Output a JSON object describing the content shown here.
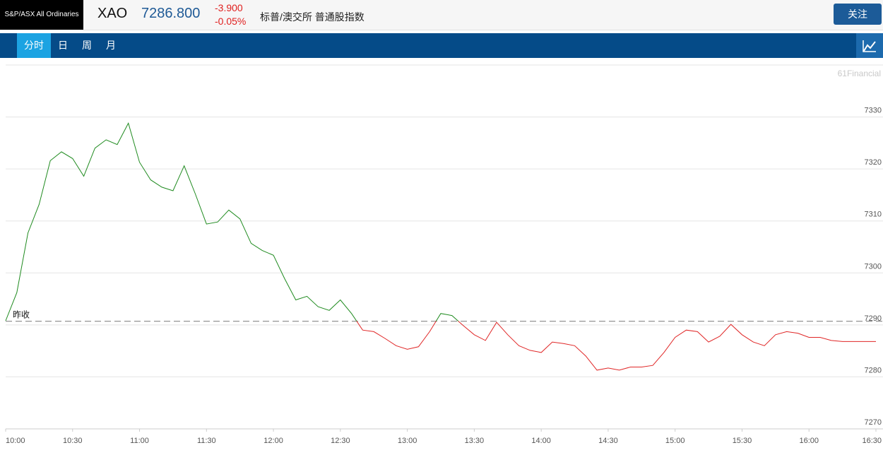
{
  "header": {
    "index_name": "S&P/ASX All Ordinaries",
    "symbol": "XAO",
    "price": "7286.800",
    "change": "-3.900",
    "change_percent": "-0.05%",
    "exchange": "标普/澳交所 普通股指数",
    "follow_button": "关注"
  },
  "tabs": [
    "分时",
    "日",
    "周",
    "月"
  ],
  "watermark": "61Financial",
  "chart_data": {
    "type": "line",
    "x": [
      "10:00",
      "10:05",
      "10:10",
      "10:15",
      "10:20",
      "10:25",
      "10:30",
      "10:35",
      "10:40",
      "10:45",
      "10:50",
      "10:55",
      "11:00",
      "11:05",
      "11:10",
      "11:15",
      "11:20",
      "11:25",
      "11:30",
      "11:35",
      "11:40",
      "11:45",
      "11:50",
      "11:55",
      "12:00",
      "12:05",
      "12:10",
      "12:15",
      "12:20",
      "12:25",
      "12:30",
      "12:35",
      "12:40",
      "12:45",
      "12:50",
      "12:55",
      "13:00",
      "13:05",
      "13:10",
      "13:15",
      "13:20",
      "13:25",
      "13:30",
      "13:35",
      "13:40",
      "13:45",
      "13:50",
      "13:55",
      "14:00",
      "14:05",
      "14:10",
      "14:15",
      "14:20",
      "14:25",
      "14:30",
      "14:35",
      "14:40",
      "14:45",
      "14:50",
      "14:55",
      "15:00",
      "15:05",
      "15:10",
      "15:15",
      "15:20",
      "15:25",
      "15:30",
      "15:35",
      "15:40",
      "15:45",
      "15:50",
      "15:55",
      "16:00",
      "16:05",
      "16:10",
      "16:15",
      "16:20",
      "16:25",
      "16:30"
    ],
    "values": [
      7290.8,
      7296.2,
      7307.7,
      7313.2,
      7321.6,
      7323.3,
      7322.0,
      7318.6,
      7324.0,
      7325.6,
      7324.7,
      7328.8,
      7321.3,
      7317.9,
      7316.5,
      7315.8,
      7320.6,
      7315.2,
      7309.4,
      7309.8,
      7312.1,
      7310.4,
      7305.7,
      7304.3,
      7303.4,
      7298.9,
      7294.8,
      7295.5,
      7293.5,
      7292.8,
      7294.8,
      7292.2,
      7289.0,
      7288.7,
      7287.4,
      7286.0,
      7285.3,
      7285.8,
      7288.7,
      7292.2,
      7291.8,
      7289.9,
      7288.1,
      7287.0,
      7290.5,
      7288.1,
      7286.0,
      7285.1,
      7284.7,
      7286.7,
      7286.4,
      7286.0,
      7284.0,
      7281.3,
      7281.7,
      7281.3,
      7281.9,
      7281.9,
      7282.2,
      7284.7,
      7287.6,
      7289.0,
      7288.7,
      7286.7,
      7287.8,
      7290.1,
      7288.1,
      7286.7,
      7286.0,
      7288.1,
      7288.7,
      7288.4,
      7287.6,
      7287.6,
      7287.0,
      7286.8,
      7286.8,
      7286.8,
      7286.8
    ],
    "colors": {
      "up": "#1e8a1e",
      "down": "#e02626"
    },
    "reference_line": {
      "value": 7290.7,
      "label": "昨收"
    },
    "xlim": [
      "10:00",
      "16:30"
    ],
    "xticks": [
      "10:00",
      "10:30",
      "11:00",
      "11:30",
      "12:00",
      "12:30",
      "13:00",
      "13:30",
      "14:00",
      "14:30",
      "15:00",
      "15:30",
      "16:00",
      "16:30"
    ],
    "ylim": [
      7270,
      7340
    ],
    "yticks": [
      7270,
      7280,
      7290,
      7300,
      7310,
      7320,
      7330
    ],
    "grid": true
  }
}
